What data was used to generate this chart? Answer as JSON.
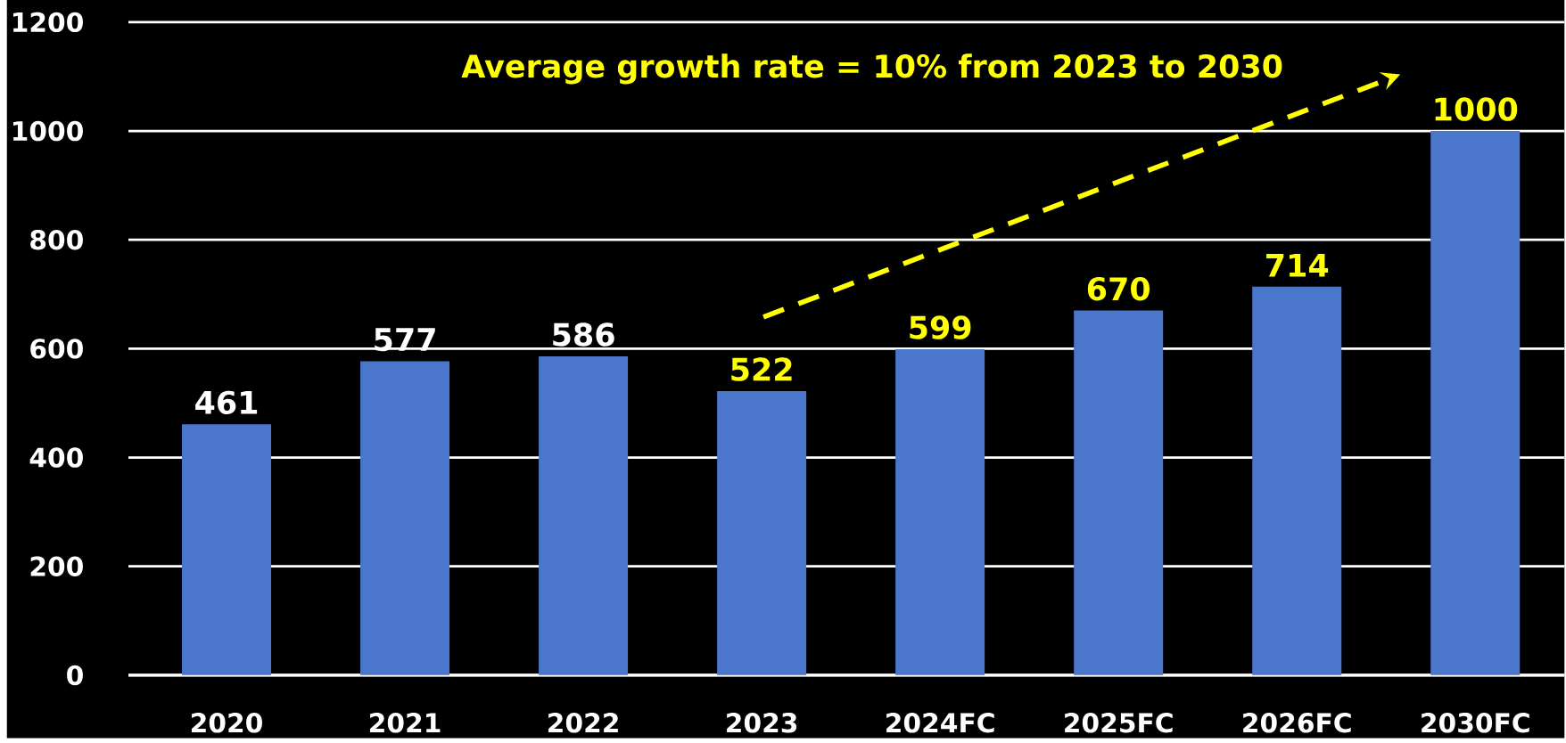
{
  "chart_data": {
    "type": "bar",
    "categories": [
      "2020",
      "2021",
      "2022",
      "2023",
      "2024FC",
      "2025FC",
      "2026FC",
      "2030FC"
    ],
    "values": [
      461,
      577,
      586,
      522,
      599,
      670,
      714,
      1000
    ],
    "color": "#4a76cc",
    "ylim": [
      0,
      1200
    ],
    "yticks": [
      0,
      200,
      400,
      600,
      800,
      1000,
      1200
    ],
    "grid": "y",
    "data_labels": true,
    "annotations": [
      "Average growth rate = 10% from 2023 to 2030"
    ]
  }
}
